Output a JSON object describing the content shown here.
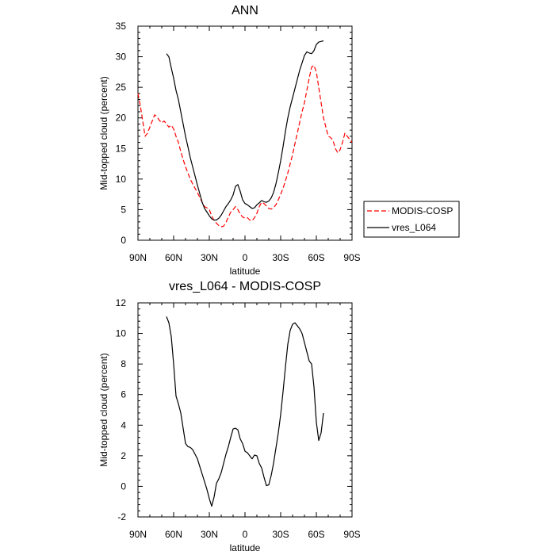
{
  "chart_data": [
    {
      "type": "line",
      "title": "ANN",
      "xlabel": "latitude",
      "ylabel": "Mid-topped cloud (percent)",
      "xlim": [
        -90,
        90
      ],
      "ylim": [
        0,
        35
      ],
      "x_ticks": [
        -90,
        -60,
        -30,
        0,
        30,
        60,
        90
      ],
      "x_tick_labels": [
        "90N",
        "60N",
        "30N",
        "0",
        "30S",
        "60S",
        "90S"
      ],
      "y_ticks": [
        0,
        5,
        10,
        15,
        20,
        25,
        30,
        35
      ],
      "y_tick_labels": [
        "0",
        "5",
        "10",
        "15",
        "20",
        "25",
        "30",
        "35"
      ],
      "grid": false,
      "legend_position": "right",
      "series": [
        {
          "name": "MODIS-COSP",
          "color": "#ff0000",
          "dash": "dashed",
          "x": [
            -90,
            -88,
            -86,
            -84,
            -82,
            -80,
            -78,
            -76,
            -74,
            -72,
            -70,
            -68,
            -66,
            -64,
            -62,
            -60,
            -58,
            -56,
            -54,
            -52,
            -50,
            -48,
            -46,
            -44,
            -42,
            -40,
            -38,
            -36,
            -34,
            -32,
            -30,
            -28,
            -26,
            -24,
            -22,
            -20,
            -18,
            -16,
            -14,
            -12,
            -10,
            -8,
            -6,
            -4,
            -2,
            0,
            2,
            4,
            6,
            8,
            10,
            12,
            14,
            16,
            18,
            20,
            22,
            24,
            26,
            28,
            30,
            32,
            34,
            36,
            38,
            40,
            42,
            44,
            46,
            48,
            50,
            52,
            54,
            56,
            58,
            60,
            62,
            64,
            66,
            68,
            70,
            72,
            74,
            76,
            78,
            80,
            82,
            84,
            86,
            88,
            90
          ],
          "y": [
            24.0,
            22.0,
            19.5,
            17.0,
            17.5,
            18.5,
            19.5,
            20.5,
            20.2,
            19.6,
            19.2,
            19.5,
            19.0,
            18.5,
            18.8,
            18.2,
            17.0,
            16.0,
            14.5,
            13.2,
            12.0,
            11.0,
            10.0,
            9.2,
            8.5,
            7.8,
            7.0,
            6.2,
            5.5,
            5.3,
            5.0,
            4.0,
            3.2,
            2.8,
            2.4,
            2.2,
            2.3,
            2.9,
            3.8,
            4.6,
            5.0,
            5.5,
            5.0,
            4.3,
            3.8,
            3.6,
            3.7,
            3.3,
            3.2,
            3.7,
            4.4,
            5.5,
            6.2,
            6.0,
            5.6,
            5.2,
            5.1,
            5.3,
            5.8,
            6.6,
            7.5,
            8.5,
            9.7,
            11.0,
            12.5,
            14.0,
            15.8,
            17.5,
            19.3,
            21.0,
            22.5,
            24.5,
            26.5,
            28.3,
            28.6,
            27.5,
            25.0,
            22.5,
            20.0,
            18.5,
            17.0,
            16.8,
            16.3,
            15.0,
            14.3,
            14.8,
            16.0,
            17.5,
            17.0,
            16.5,
            16.0
          ]
        },
        {
          "name": "vres_L064",
          "color": "#000000",
          "dash": "solid",
          "x": [
            -66,
            -64,
            -62,
            -60,
            -58,
            -56,
            -54,
            -52,
            -50,
            -48,
            -46,
            -44,
            -42,
            -40,
            -38,
            -36,
            -34,
            -32,
            -30,
            -28,
            -26,
            -24,
            -22,
            -20,
            -18,
            -16,
            -14,
            -12,
            -10,
            -8,
            -6,
            -4,
            -2,
            0,
            2,
            4,
            6,
            8,
            10,
            12,
            14,
            16,
            18,
            20,
            22,
            24,
            26,
            28,
            30,
            32,
            34,
            36,
            38,
            40,
            42,
            44,
            46,
            48,
            50,
            52,
            54,
            56,
            58,
            60,
            62,
            64,
            66
          ],
          "y": [
            30.5,
            30.0,
            28.2,
            26.5,
            24.5,
            23.0,
            21.0,
            19.0,
            17.0,
            15.3,
            13.5,
            12.0,
            10.5,
            9.0,
            7.6,
            6.2,
            5.2,
            4.6,
            4.0,
            3.5,
            3.3,
            3.3,
            3.6,
            4.1,
            4.8,
            5.5,
            6.0,
            6.6,
            7.4,
            8.8,
            9.1,
            8.0,
            6.6,
            6.0,
            5.8,
            5.5,
            5.2,
            5.3,
            5.8,
            6.1,
            6.5,
            6.3,
            6.2,
            6.4,
            6.9,
            7.8,
            9.2,
            11.0,
            13.0,
            15.3,
            17.8,
            20.0,
            21.8,
            23.3,
            24.8,
            26.3,
            27.8,
            29.0,
            30.2,
            30.8,
            30.6,
            30.5,
            31.0,
            32.0,
            32.4,
            32.5,
            32.6
          ]
        }
      ]
    },
    {
      "type": "line",
      "title": "vres_L064 - MODIS-COSP",
      "xlabel": "latitude",
      "ylabel": "Mid-topped cloud (percent)",
      "xlim": [
        -90,
        90
      ],
      "ylim": [
        -2,
        12
      ],
      "x_ticks": [
        -90,
        -60,
        -30,
        0,
        30,
        60,
        90
      ],
      "x_tick_labels": [
        "90N",
        "60N",
        "30N",
        "0",
        "30S",
        "60S",
        "90S"
      ],
      "y_ticks": [
        -2,
        0,
        2,
        4,
        6,
        8,
        10,
        12
      ],
      "y_tick_labels": [
        "-2",
        "0",
        "2",
        "4",
        "6",
        "8",
        "10",
        "12"
      ],
      "grid": false,
      "series": [
        {
          "color": "#000000",
          "dash": "solid",
          "x": [
            -66,
            -64,
            -62,
            -60,
            -58,
            -56,
            -54,
            -52,
            -50,
            -48,
            -46,
            -44,
            -42,
            -40,
            -38,
            -36,
            -34,
            -32,
            -30,
            -28,
            -26,
            -24,
            -22,
            -20,
            -18,
            -16,
            -14,
            -12,
            -10,
            -8,
            -6,
            -4,
            -2,
            0,
            2,
            4,
            6,
            8,
            10,
            12,
            14,
            16,
            18,
            20,
            22,
            24,
            26,
            28,
            30,
            32,
            34,
            36,
            38,
            40,
            42,
            44,
            46,
            48,
            50,
            52,
            54,
            56,
            58,
            60,
            62,
            64,
            66
          ],
          "y": [
            11.1,
            10.7,
            9.8,
            8.0,
            5.9,
            5.4,
            4.8,
            3.8,
            2.8,
            2.6,
            2.55,
            2.4,
            2.1,
            1.8,
            1.3,
            0.8,
            0.3,
            -0.2,
            -0.8,
            -1.3,
            -0.7,
            0.2,
            0.5,
            0.9,
            1.5,
            2.1,
            2.6,
            3.2,
            3.75,
            3.8,
            3.7,
            3.1,
            2.8,
            2.3,
            2.2,
            2.0,
            1.8,
            2.05,
            2.0,
            1.5,
            1.2,
            0.6,
            0.05,
            0.1,
            0.7,
            1.5,
            2.5,
            3.5,
            4.7,
            6.2,
            7.8,
            9.3,
            10.2,
            10.6,
            10.7,
            10.5,
            10.3,
            10.0,
            9.4,
            8.8,
            8.2,
            8.0,
            6.5,
            4.2,
            3.0,
            3.5,
            4.8
          ]
        }
      ]
    }
  ]
}
